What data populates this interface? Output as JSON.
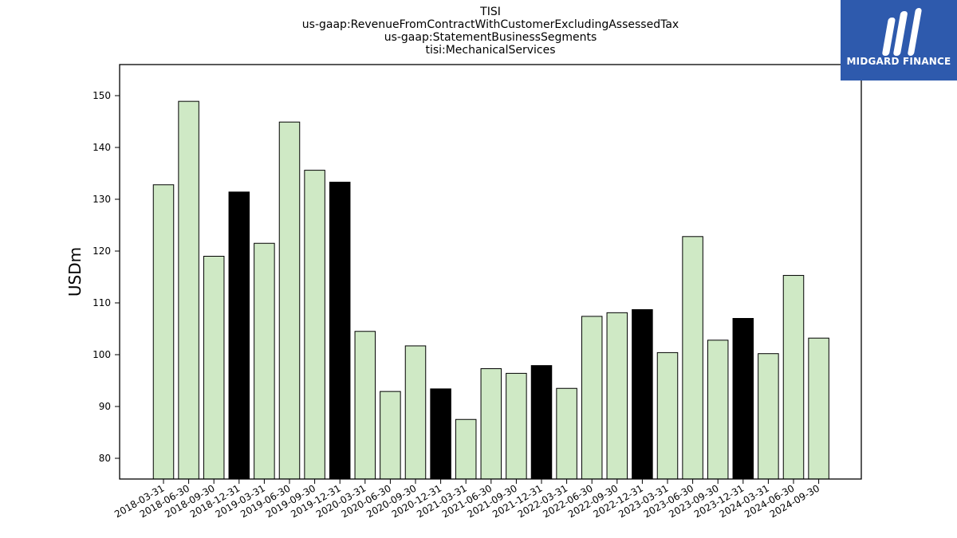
{
  "header": {
    "lines": [
      "TISI",
      "us-gaap:RevenueFromContractWithCustomerExcludingAssessedTax",
      "us-gaap:StatementBusinessSegments",
      "tisi:MechanicalServices"
    ]
  },
  "logo": {
    "text": "MIDGARD FINANCE",
    "color": "#2e5aad"
  },
  "colors": {
    "quarter_bar": "#cfe9c5",
    "year_end_bar": "#000000",
    "edge": "#000000"
  },
  "chart_data": {
    "type": "bar",
    "title": "TISI\nus-gaap:RevenueFromContractWithCustomerExcludingAssessedTax\nus-gaap:StatementBusinessSegments\ntisi:MechanicalServices",
    "xlabel": "",
    "ylabel": "USDm",
    "ylim": [
      76,
      156
    ],
    "yticks": [
      80,
      90,
      100,
      110,
      120,
      130,
      140,
      150
    ],
    "grid": false,
    "categories": [
      "2018-03-31",
      "2018-06-30",
      "2018-09-30",
      "2018-12-31",
      "2019-03-31",
      "2019-06-30",
      "2019-09-30",
      "2019-12-31",
      "2020-03-31",
      "2020-06-30",
      "2020-09-30",
      "2020-12-31",
      "2021-03-31",
      "2021-06-30",
      "2021-09-30",
      "2021-12-31",
      "2022-03-31",
      "2022-06-30",
      "2022-09-30",
      "2022-12-31",
      "2023-03-31",
      "2023-06-30",
      "2023-09-30",
      "2023-12-31",
      "2024-03-31",
      "2024-06-30",
      "2024-09-30"
    ],
    "values": [
      132.8,
      148.9,
      119.0,
      131.4,
      121.5,
      144.9,
      135.6,
      133.3,
      104.5,
      92.9,
      101.7,
      93.4,
      87.5,
      97.3,
      96.4,
      97.9,
      93.5,
      107.4,
      108.1,
      108.7,
      100.4,
      122.8,
      102.8,
      107.0,
      100.2,
      115.3,
      103.2
    ],
    "year_end": [
      false,
      false,
      false,
      true,
      false,
      false,
      false,
      true,
      false,
      false,
      false,
      true,
      false,
      false,
      false,
      true,
      false,
      false,
      false,
      true,
      false,
      false,
      false,
      true,
      false,
      false,
      false
    ]
  }
}
